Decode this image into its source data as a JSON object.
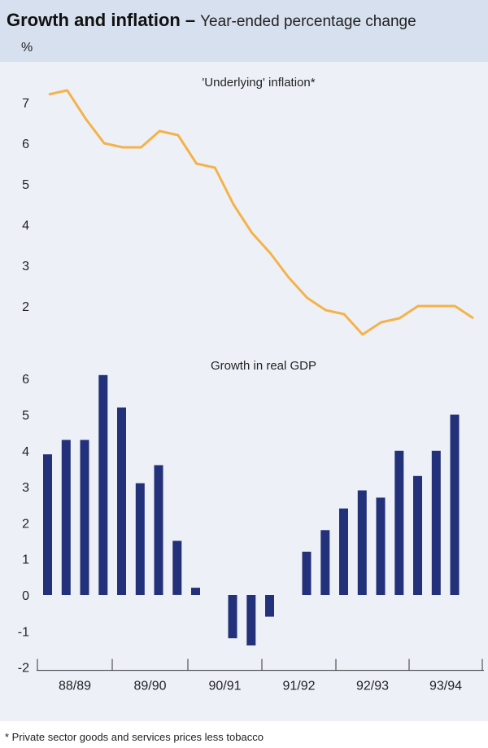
{
  "header": {
    "title": "Growth and inflation",
    "dash": "–",
    "subtitle": "Year-ended percentage change",
    "unit": "%"
  },
  "footnote": "* Private sector goods and services prices less tobacco",
  "colors": {
    "background_band": "#d7e0ee",
    "panel": "#edf1f7",
    "inflation_line": "#f5b24a",
    "gdp_bar": "#23307a",
    "axis": "#333333"
  },
  "chart_data": [
    {
      "type": "line",
      "title": "'Underlying' inflation*",
      "ylabel": "%",
      "ylim": [
        1,
        7.7
      ],
      "yticks": [
        2,
        3,
        4,
        5,
        6,
        7
      ],
      "series": [
        {
          "name": "'Underlying' inflation*",
          "values": [
            7.2,
            7.3,
            6.6,
            6.0,
            5.9,
            5.9,
            6.3,
            6.2,
            5.5,
            5.4,
            4.5,
            3.8,
            3.3,
            2.7,
            2.2,
            1.9,
            1.8,
            1.3,
            1.6,
            1.7,
            2.0,
            2.0,
            2.0,
            1.7
          ]
        }
      ]
    },
    {
      "type": "bar",
      "title": "Growth in real GDP",
      "ylabel": "%",
      "ylim": [
        -2,
        6.5
      ],
      "yticks": [
        6,
        5,
        4,
        3,
        2,
        1,
        0,
        -1,
        -2
      ],
      "x_tick_labels": [
        "88/89",
        "89/90",
        "90/91",
        "91/92",
        "92/93",
        "93/94"
      ],
      "series": [
        {
          "name": "Growth in real GDP",
          "values": [
            3.9,
            4.3,
            4.3,
            6.1,
            5.2,
            3.1,
            3.6,
            1.5,
            0.2,
            null,
            -1.2,
            -1.4,
            -0.6,
            null,
            1.2,
            1.8,
            2.4,
            2.9,
            2.7,
            4.0,
            3.3,
            4.0,
            5.0
          ]
        }
      ]
    }
  ]
}
